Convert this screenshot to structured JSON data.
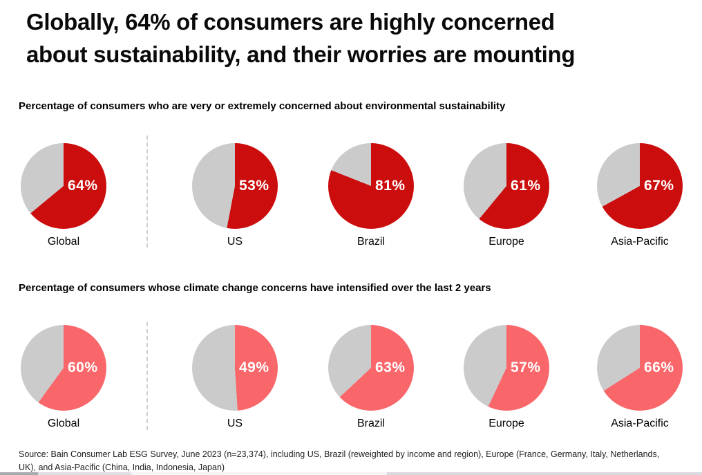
{
  "header": {
    "title_lines": [
      "Globally, 64% of consumers are highly concerned",
      "about sustainability, and their worries are mounting"
    ]
  },
  "colors": {
    "concern_red": "#CC0D0D",
    "intensified_coral": "#FA676B",
    "remainder_gray": "#CBCBCB",
    "divider_gray": "#CFCFCF"
  },
  "chart_data": [
    {
      "type": "pie",
      "title": "Percentage of consumers who are very or extremely concerned about environmental sustainability",
      "unit": "%",
      "categories": [
        "Global",
        "US",
        "Brazil",
        "Europe",
        "Asia-Pacific"
      ],
      "values": [
        64,
        53,
        81,
        61,
        67
      ],
      "value_labels": [
        "64%",
        "53%",
        "81%",
        "61%",
        "67%"
      ],
      "slice_color": "#CC0D0D",
      "remainder_color": "#CBCBCB",
      "start_angle": "top",
      "direction": "clockwise",
      "value_label_position": "inside-right",
      "legend": "none"
    },
    {
      "type": "pie",
      "title": "Percentage of consumers whose climate change concerns have intensified over the last 2 years",
      "unit": "%",
      "categories": [
        "Global",
        "US",
        "Brazil",
        "Europe",
        "Asia-Pacific"
      ],
      "values": [
        60,
        49,
        63,
        57,
        66
      ],
      "value_labels": [
        "60%",
        "49%",
        "63%",
        "57%",
        "66%"
      ],
      "slice_color": "#FA676B",
      "remainder_color": "#CBCBCB",
      "start_angle": "top",
      "direction": "clockwise",
      "value_label_position": "inside-right",
      "legend": "none"
    }
  ],
  "footer": {
    "source_lines": [
      "Source: Bain Consumer Lab ESG Survey, June 2023 (n=23,374), including US, Brazil (reweighted by income and region), Europe (France, Germany, Italy, Netherlands,",
      "UK), and Asia-Pacific (China, India, Indonesia, Japan)"
    ]
  }
}
